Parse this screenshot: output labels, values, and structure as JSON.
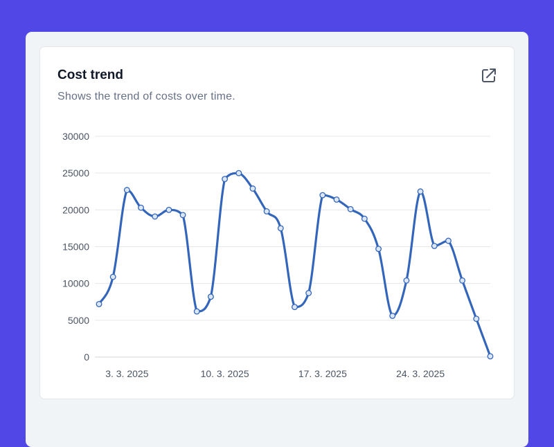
{
  "card": {
    "title": "Cost trend",
    "subtitle": "Shows the trend of costs over time.",
    "action_icon": "external-link-icon"
  },
  "colors": {
    "background": "#5047e6",
    "line": "#3366bb",
    "grid": "#e5e7eb"
  },
  "chart_data": {
    "type": "line",
    "title": "",
    "xlabel": "",
    "ylabel": "",
    "ylim": [
      0,
      30000
    ],
    "yticks": [
      "0",
      "5000",
      "10000",
      "15000",
      "20000",
      "25000",
      "30000"
    ],
    "xtick_labels": [
      "3. 3. 2025",
      "10. 3. 2025",
      "17. 3. 2025",
      "24. 3. 2025"
    ],
    "xtick_dates": [
      "2025-03-03",
      "2025-03-10",
      "2025-03-17",
      "2025-03-24"
    ],
    "grid": true,
    "smooth": true,
    "markers": "hollow-circle",
    "series": [
      {
        "x": [
          "2025-03-01",
          "2025-03-02",
          "2025-03-03",
          "2025-03-04",
          "2025-03-05",
          "2025-03-06",
          "2025-03-07",
          "2025-03-08",
          "2025-03-09",
          "2025-03-10",
          "2025-03-11",
          "2025-03-12",
          "2025-03-13",
          "2025-03-14",
          "2025-03-15",
          "2025-03-16",
          "2025-03-17",
          "2025-03-18",
          "2025-03-19",
          "2025-03-20",
          "2025-03-21",
          "2025-03-22",
          "2025-03-23",
          "2025-03-24",
          "2025-03-25",
          "2025-03-26",
          "2025-03-27",
          "2025-03-28",
          "2025-03-29"
        ],
        "values": [
          7200,
          10900,
          22700,
          20300,
          19100,
          20000,
          19300,
          6200,
          8200,
          24200,
          25000,
          22900,
          19800,
          17500,
          6800,
          8700,
          22000,
          21400,
          20100,
          18800,
          14700,
          5600,
          10400,
          22500,
          15100,
          15800,
          10400,
          5200,
          100
        ]
      }
    ]
  }
}
